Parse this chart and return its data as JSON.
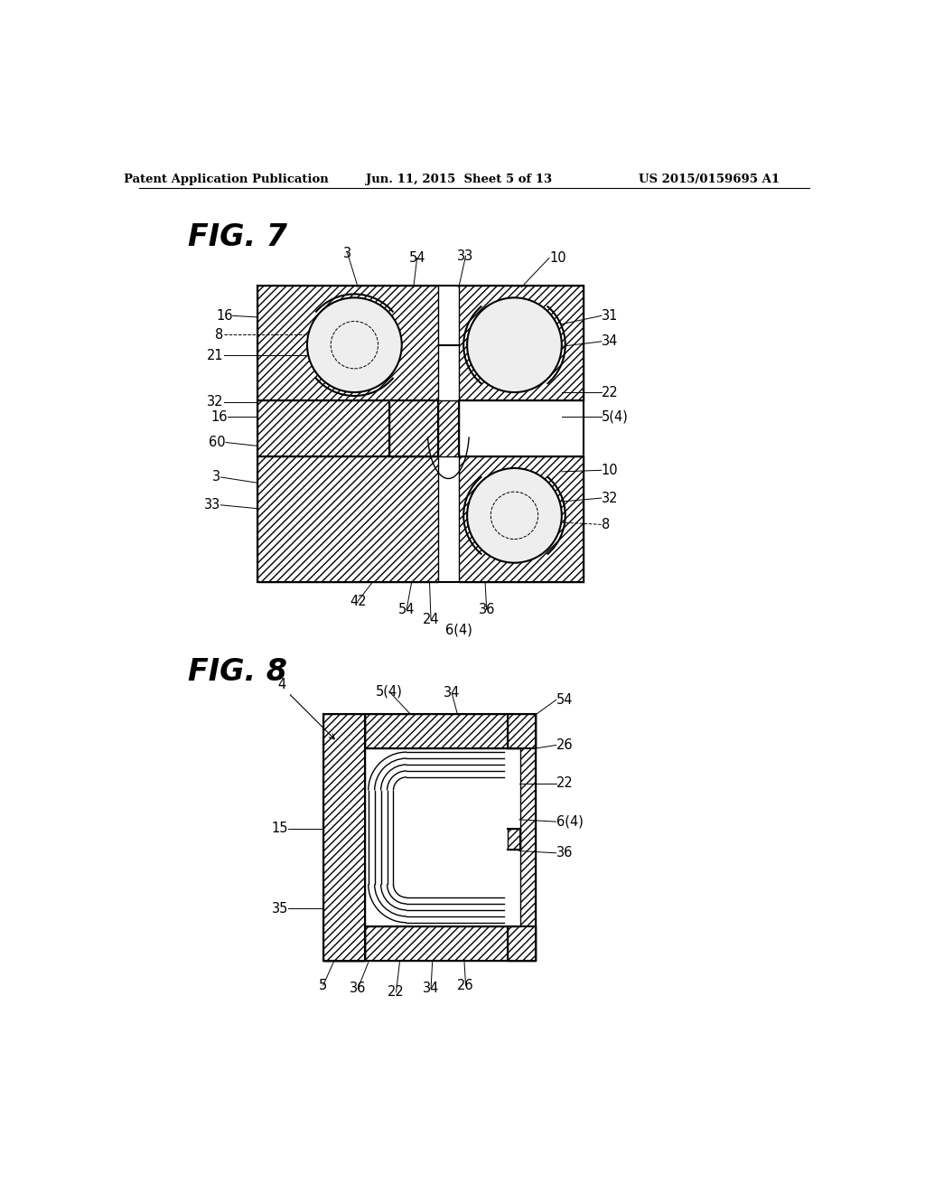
{
  "header_left": "Patent Application Publication",
  "header_mid": "Jun. 11, 2015  Sheet 5 of 13",
  "header_right": "US 2015/0159695 A1",
  "fig7_label": "FIG. 7",
  "fig8_label": "FIG. 8",
  "bg_color": "#ffffff"
}
